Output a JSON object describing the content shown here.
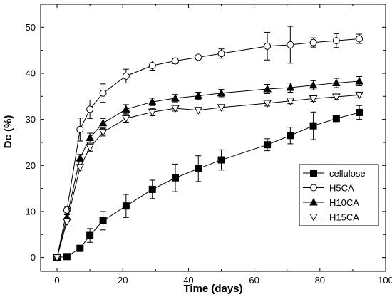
{
  "chart_data": {
    "type": "line",
    "xlabel": "Time (days)",
    "ylabel": "Dc (%)",
    "xlim": [
      -5,
      100
    ],
    "ylim": [
      -3,
      55
    ],
    "xticks": [
      0,
      20,
      40,
      60,
      80,
      100
    ],
    "yticks": [
      0,
      10,
      20,
      30,
      40,
      50
    ],
    "legend_position": "lower-right",
    "error_bars": true,
    "series": [
      {
        "name": "cellulose",
        "marker": "filled-square",
        "x": [
          0,
          3,
          7,
          10,
          14,
          21,
          29,
          36,
          43,
          50,
          64,
          71,
          78,
          85,
          92
        ],
        "y": [
          0,
          0.2,
          2,
          4.8,
          8,
          11.2,
          14.8,
          17.3,
          19.3,
          21.2,
          24.5,
          26.5,
          28.6,
          30.2,
          31.5
        ],
        "err": [
          0.3,
          0.3,
          0.5,
          1.5,
          2.0,
          2.5,
          2.0,
          3.0,
          2.8,
          2.2,
          1.3,
          1.8,
          3.0,
          0.5,
          1.5
        ]
      },
      {
        "name": "H5CA",
        "marker": "open-circle",
        "x": [
          0,
          3,
          7,
          10,
          14,
          21,
          29,
          36,
          43,
          50,
          64,
          71,
          78,
          85,
          92
        ],
        "y": [
          0,
          10.3,
          27.8,
          32.2,
          35.7,
          39.4,
          41.7,
          42.7,
          43.5,
          44.3,
          45.9,
          46.2,
          46.7,
          47.1,
          47.5
        ],
        "err": [
          0.3,
          0.8,
          2.5,
          2.0,
          2.0,
          1.5,
          1.0,
          0.6,
          0.4,
          1.0,
          3.0,
          4.0,
          1.0,
          1.5,
          1.0
        ]
      },
      {
        "name": "H10CA",
        "marker": "filled-triangle-up",
        "x": [
          0,
          3,
          7,
          10,
          14,
          21,
          29,
          36,
          43,
          50,
          64,
          71,
          78,
          85,
          92
        ],
        "y": [
          0,
          8.8,
          21.6,
          26,
          29.2,
          32.2,
          33.8,
          34.6,
          35.1,
          35.7,
          36.6,
          36.9,
          37.4,
          37.9,
          38.3
        ],
        "err": [
          0.3,
          0.5,
          0.8,
          1.0,
          1.0,
          1.0,
          0.8,
          0.8,
          0.8,
          0.8,
          1.0,
          1.0,
          1.0,
          1.0,
          1.0
        ]
      },
      {
        "name": "H15CA",
        "marker": "open-triangle-down",
        "x": [
          0,
          3,
          7,
          10,
          14,
          21,
          29,
          36,
          43,
          50,
          64,
          71,
          78,
          85,
          92
        ],
        "y": [
          0,
          7.8,
          19.6,
          23.9,
          27.2,
          30.2,
          31.6,
          32.4,
          32.0,
          32.6,
          33.5,
          34.0,
          34.5,
          34.9,
          35.3
        ],
        "err": [
          0.3,
          0.5,
          0.6,
          0.8,
          0.8,
          0.8,
          0.8,
          0.6,
          0.6,
          0.6,
          0.6,
          0.6,
          0.6,
          0.6,
          0.6
        ]
      }
    ]
  }
}
